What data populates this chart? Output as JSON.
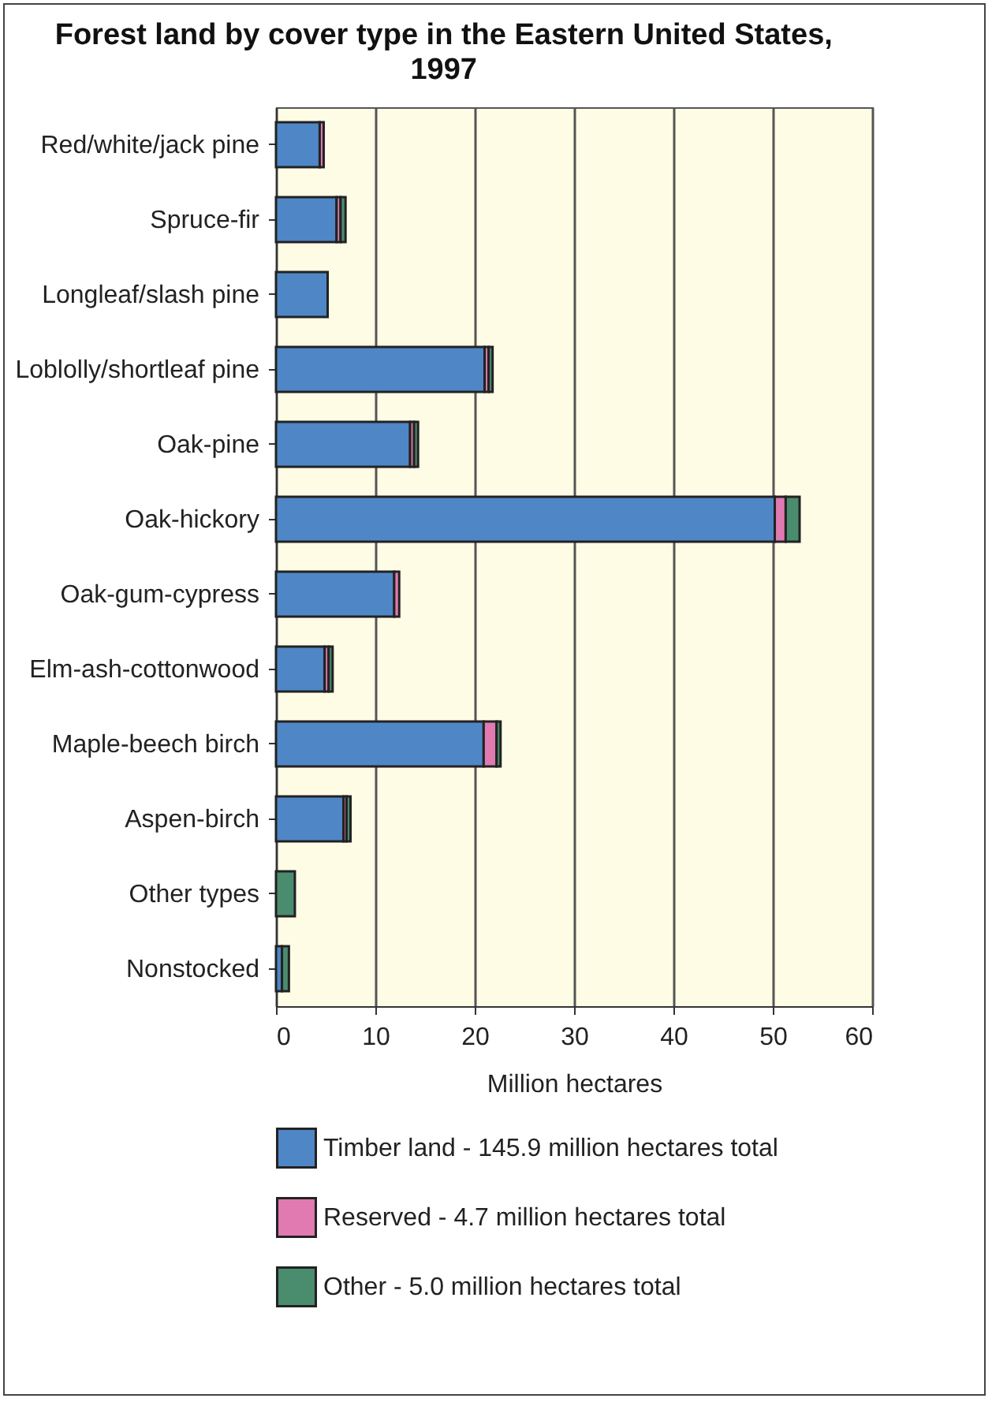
{
  "chart_data": {
    "type": "bar",
    "orientation": "horizontal",
    "stacked": true,
    "title": "Forest land by cover type in the Eastern United States, 1997",
    "xlabel": "Million hectares",
    "categories": [
      "Red/white/jack pine",
      "Spruce-fir",
      "Longleaf/slash pine",
      "Loblolly/shortleaf pine",
      "Oak-pine",
      "Oak-hickory",
      "Oak-gum-cypress",
      "Elm-ash-cottonwood",
      "Maple-beech birch",
      "Aspen-birch",
      "Other types",
      "Nonstocked"
    ],
    "series": [
      {
        "name": "Timber land - 145.9 million hectares total",
        "color": "#4f86c6",
        "values": [
          4.4,
          6.1,
          5.2,
          21.0,
          13.5,
          50.2,
          11.9,
          4.9,
          20.9,
          6.8,
          0,
          0.6
        ]
      },
      {
        "name": "Reserved - 4.7 million hectares total",
        "color": "#e07ab0",
        "values": [
          0.4,
          0.4,
          0,
          0.4,
          0.4,
          1.1,
          0.5,
          0.4,
          1.3,
          0.3,
          0,
          0
        ]
      },
      {
        "name": "Other - 5.0 million hectares total",
        "color": "#4a8c6e",
        "values": [
          0,
          0.5,
          0,
          0.4,
          0.4,
          1.4,
          0,
          0.4,
          0.4,
          0.4,
          1.9,
          0.7
        ]
      }
    ],
    "xlim": [
      0,
      60
    ],
    "xticks": [
      0,
      10,
      20,
      30,
      40,
      50,
      60
    ],
    "grid": "x",
    "legend": "bottom"
  }
}
